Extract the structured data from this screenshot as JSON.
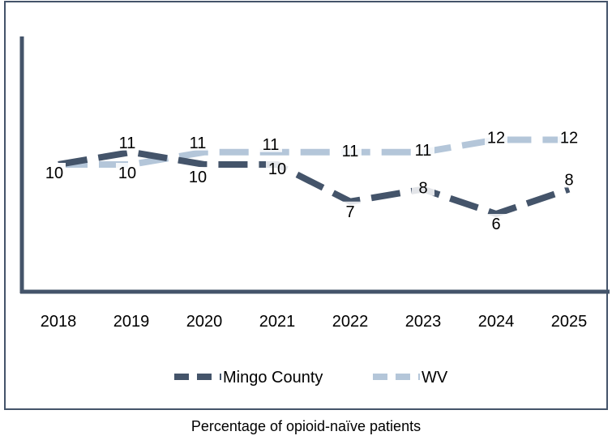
{
  "chart_data": {
    "type": "line",
    "categories": [
      "2018",
      "2019",
      "2020",
      "2021",
      "2022",
      "2023",
      "2024",
      "2025"
    ],
    "series": [
      {
        "name": "Mingo County",
        "values": [
          10,
          11,
          10,
          10,
          7,
          8,
          6,
          8
        ],
        "color": "#44546a"
      },
      {
        "name": "WV",
        "values": [
          10,
          10,
          11,
          11,
          11,
          11,
          12,
          12
        ],
        "color": "#b4c6d9"
      }
    ],
    "ylim": [
      0,
      16
    ],
    "grid": false,
    "legend": "bottom",
    "line_style": "dashed",
    "data_labels": true,
    "axis_color": "#44546a"
  },
  "caption": "Percentage of opioid-naïve patients"
}
